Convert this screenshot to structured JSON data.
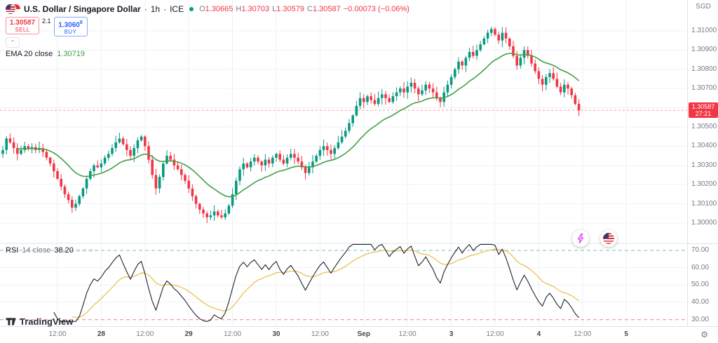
{
  "header": {
    "symbol": "U.S. Dollar / Singapore Dollar",
    "dot1": "·",
    "timeframe": "1h",
    "dot2": "·",
    "exchange": "ICE",
    "ohlc": {
      "o_label": "O",
      "o_value": "1.30665",
      "h_label": "H",
      "h_value": "1.30703",
      "l_label": "L",
      "l_value": "1.30579",
      "c_label": "C",
      "c_value": "1.30587",
      "change": "−0.00073 (−0.06%)"
    },
    "currency_label": "SGD"
  },
  "trade_panel": {
    "sell_price": "1.30587",
    "sell_label": "SELL",
    "spread": "2.1",
    "buy_price": "1.3060",
    "buy_sup": "8",
    "buy_label": "BUY",
    "collapse_glyph": "⌃"
  },
  "legends": {
    "ema_title": "EMA 20 close",
    "ema_value": "1.30719",
    "rsi_title": "RSI",
    "rsi_params": "14 close",
    "rsi_value": "38.20"
  },
  "price_axis": {
    "labels": [
      {
        "text": "1.31000",
        "value": 1.31
      },
      {
        "text": "1.30900",
        "value": 1.309
      },
      {
        "text": "1.30800",
        "value": 1.308
      },
      {
        "text": "1.30700",
        "value": 1.307
      },
      {
        "text": "1.30600",
        "value": 1.306
      },
      {
        "text": "1.30500",
        "value": 1.305
      },
      {
        "text": "1.30400",
        "value": 1.304
      },
      {
        "text": "1.30300",
        "value": 1.303
      },
      {
        "text": "1.30200",
        "value": 1.302
      },
      {
        "text": "1.30100",
        "value": 1.301
      },
      {
        "text": "1.30000",
        "value": 1.3
      }
    ],
    "tag": {
      "price": "1.30587",
      "countdown": "27:21"
    }
  },
  "rsi_axis": {
    "labels": [
      {
        "text": "70.00",
        "value": 70
      },
      {
        "text": "60.00",
        "value": 60
      },
      {
        "text": "50.00",
        "value": 50
      },
      {
        "text": "40.00",
        "value": 40
      },
      {
        "text": "30.00",
        "value": 30
      }
    ]
  },
  "time_axis": {
    "ticks": [
      {
        "index": 15,
        "label": "12:00",
        "major": false
      },
      {
        "index": 27,
        "label": "28",
        "major": true
      },
      {
        "index": 39,
        "label": "12:00",
        "major": false
      },
      {
        "index": 51,
        "label": "29",
        "major": true
      },
      {
        "index": 63,
        "label": "12:00",
        "major": false
      },
      {
        "index": 75,
        "label": "30",
        "major": true
      },
      {
        "index": 87,
        "label": "12:00",
        "major": false
      },
      {
        "index": 99,
        "label": "Sep",
        "major": true
      },
      {
        "index": 111,
        "label": "12:00",
        "major": false
      },
      {
        "index": 123,
        "label": "3",
        "major": true
      },
      {
        "index": 135,
        "label": "12:00",
        "major": false
      },
      {
        "index": 147,
        "label": "4",
        "major": true
      },
      {
        "index": 159,
        "label": "12:00",
        "major": false
      },
      {
        "index": 171,
        "label": "5",
        "major": true
      }
    ]
  },
  "footer": {
    "watermark": "TradingView",
    "settings_icon": "⚙"
  },
  "chart_data": {
    "type": "candlestick",
    "symbol": "USD/SGD",
    "interval": "1h",
    "exchange": "ICE",
    "ylim": [
      1.2995,
      1.3105
    ],
    "first_open": 1.3036,
    "last_price": 1.30587,
    "colors": {
      "up": "#089981",
      "down": "#f23645"
    },
    "ema": {
      "length": 20,
      "color": "#43a047",
      "last_value": 1.30719
    },
    "rsi": {
      "length": 14,
      "color": "#1e222d",
      "ma_color": "#e8c252",
      "overbought": 70,
      "oversold": 30,
      "last_value": 38.2
    },
    "closes": [
      1.3038,
      1.3044,
      1.3042,
      1.3039,
      1.3036,
      1.3038,
      1.304,
      1.30385,
      1.30395,
      1.3038,
      1.3039,
      1.3037,
      1.3034,
      1.3031,
      1.3027,
      1.3023,
      1.3019,
      1.3015,
      1.3012,
      1.3008,
      1.301,
      1.3014,
      1.3018,
      1.3023,
      1.3027,
      1.303,
      1.3029,
      1.3031,
      1.3034,
      1.3036,
      1.3039,
      1.3042,
      1.3044,
      1.3041,
      1.3038,
      1.3035,
      1.3039,
      1.3043,
      1.3045,
      1.304,
      1.3033,
      1.3025,
      1.3018,
      1.3024,
      1.3031,
      1.3035,
      1.3033,
      1.303,
      1.3028,
      1.3025,
      1.3022,
      1.3018,
      1.3014,
      1.301,
      1.3007,
      1.3005,
      1.3003,
      1.3004,
      1.3006,
      1.3004,
      1.3003,
      1.3005,
      1.3009,
      1.3015,
      1.3022,
      1.3028,
      1.3031,
      1.3029,
      1.3032,
      1.3034,
      1.3032,
      1.303,
      1.3033,
      1.3031,
      1.3034,
      1.3036,
      1.3033,
      1.3031,
      1.3034,
      1.3036,
      1.3034,
      1.3032,
      1.3029,
      1.3026,
      1.3029,
      1.3032,
      1.3035,
      1.3038,
      1.304,
      1.3038,
      1.3036,
      1.3039,
      1.3042,
      1.3045,
      1.3048,
      1.3052,
      1.3056,
      1.3061,
      1.3065,
      1.3063,
      1.3066,
      1.3064,
      1.3062,
      1.3065,
      1.3067,
      1.3065,
      1.3063,
      1.3066,
      1.3068,
      1.307,
      1.3068,
      1.3071,
      1.3073,
      1.307,
      1.3067,
      1.3069,
      1.3072,
      1.307,
      1.3068,
      1.3065,
      1.3063,
      1.3068,
      1.3072,
      1.3076,
      1.308,
      1.3084,
      1.3082,
      1.3086,
      1.3089,
      1.3087,
      1.309,
      1.3093,
      1.3096,
      1.3099,
      1.3101,
      1.3098,
      1.3095,
      1.3099,
      1.3096,
      1.3092,
      1.3087,
      1.3082,
      1.3086,
      1.309,
      1.3087,
      1.3083,
      1.3079,
      1.3075,
      1.3072,
      1.3076,
      1.3078,
      1.3075,
      1.3071,
      1.3068,
      1.3072,
      1.307,
      1.30665,
      1.3062,
      1.30587
    ]
  }
}
